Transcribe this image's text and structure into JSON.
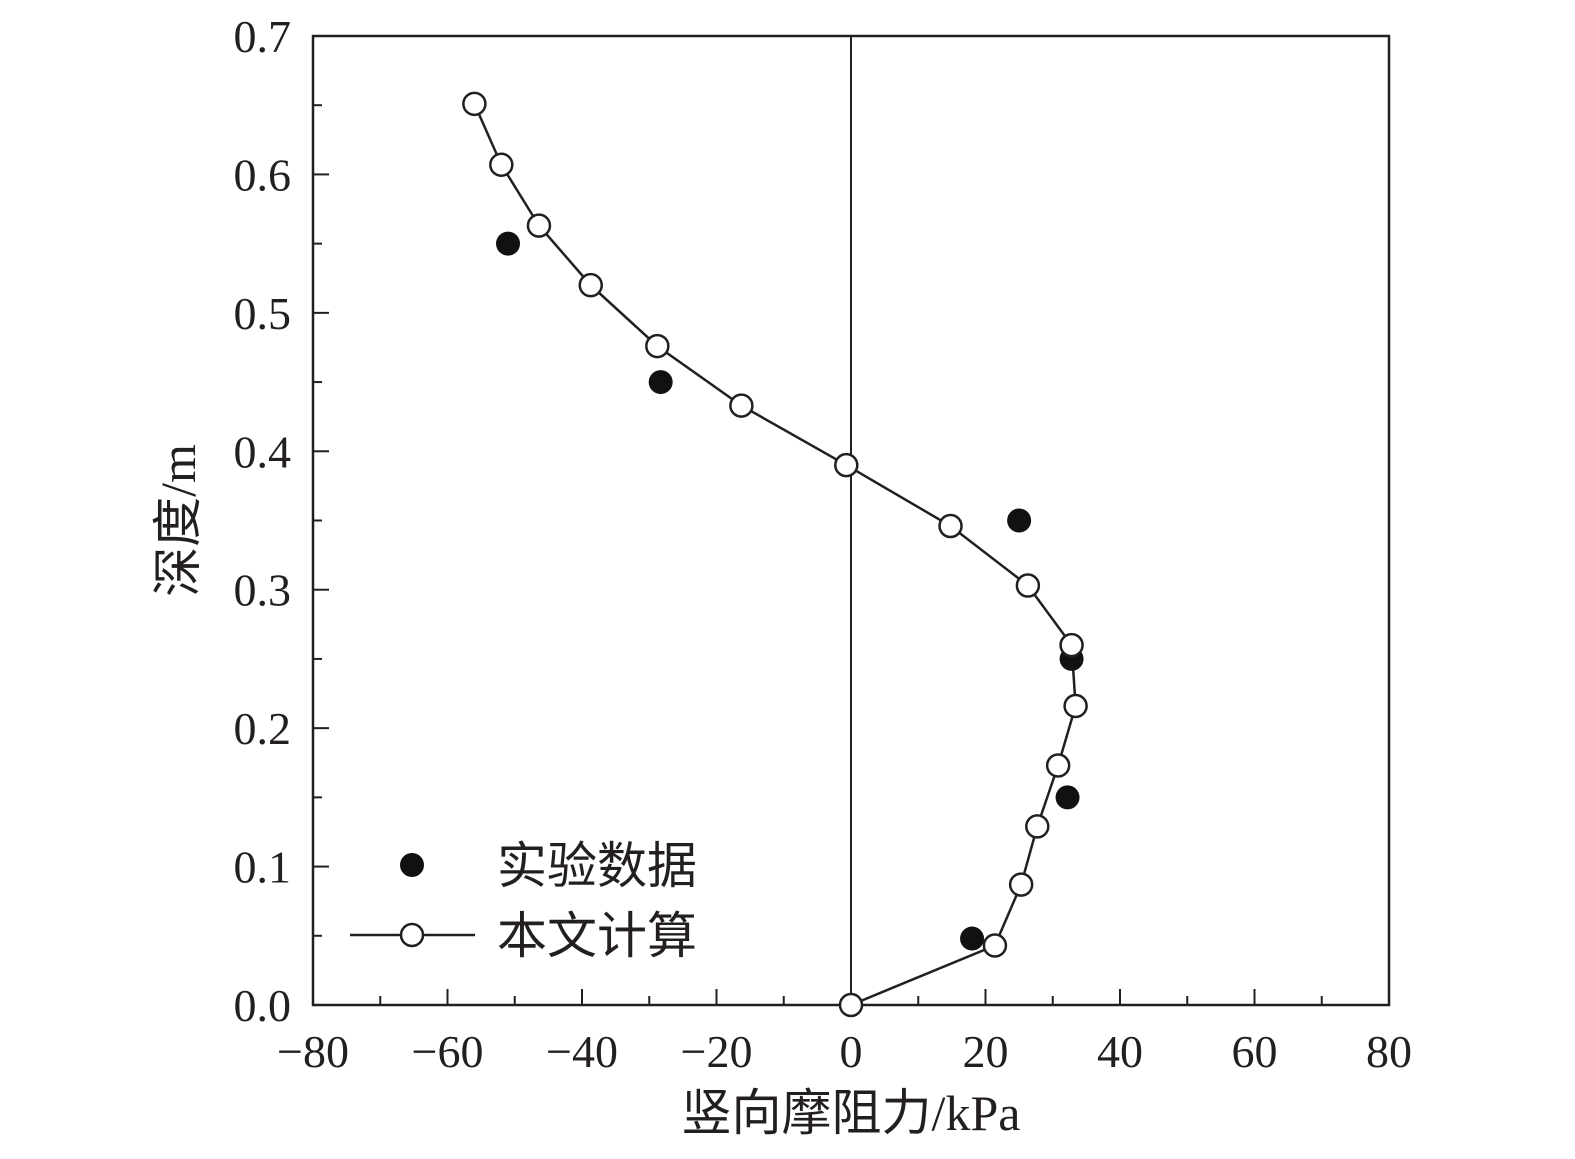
{
  "chart_data": {
    "type": "scatter",
    "xlabel": "竖向摩阻力/kPa",
    "ylabel": "深度/m",
    "xlim": [
      -80,
      80
    ],
    "ylim": [
      0,
      0.7
    ],
    "x_ticks": [
      -80,
      -60,
      -40,
      -20,
      0,
      20,
      40,
      60,
      80
    ],
    "x_tick_labels": [
      "−80",
      "−60",
      "−40",
      "−20",
      "0",
      "20",
      "40",
      "60",
      "80"
    ],
    "y_ticks": [
      0.0,
      0.1,
      0.2,
      0.3,
      0.4,
      0.5,
      0.6,
      0.7
    ],
    "y_tick_labels": [
      "0.0",
      "0.1",
      "0.2",
      "0.3",
      "0.4",
      "0.5",
      "0.6",
      "0.7"
    ],
    "grid": false,
    "legend_position": "bottom-left",
    "series": [
      {
        "name": "实验数据",
        "style": "filled-circle",
        "points": [
          {
            "x": -51,
            "y": 0.55
          },
          {
            "x": -28.3,
            "y": 0.45
          },
          {
            "x": 25,
            "y": 0.35
          },
          {
            "x": 32.8,
            "y": 0.25
          },
          {
            "x": 32.2,
            "y": 0.15
          },
          {
            "x": 18,
            "y": 0.048
          }
        ]
      },
      {
        "name": "本文计算",
        "style": "open-circle-line",
        "points": [
          {
            "x": -56,
            "y": 0.651
          },
          {
            "x": -52,
            "y": 0.607
          },
          {
            "x": -46.4,
            "y": 0.563
          },
          {
            "x": -38.7,
            "y": 0.52
          },
          {
            "x": -28.8,
            "y": 0.476
          },
          {
            "x": -16.3,
            "y": 0.433
          },
          {
            "x": -0.7,
            "y": 0.39
          },
          {
            "x": 14.8,
            "y": 0.346
          },
          {
            "x": 26.3,
            "y": 0.303
          },
          {
            "x": 32.8,
            "y": 0.26
          },
          {
            "x": 33.4,
            "y": 0.216
          },
          {
            "x": 30.8,
            "y": 0.173
          },
          {
            "x": 27.7,
            "y": 0.129
          },
          {
            "x": 25.3,
            "y": 0.087
          },
          {
            "x": 21.4,
            "y": 0.043
          },
          {
            "x": 0,
            "y": 0
          }
        ]
      }
    ]
  }
}
